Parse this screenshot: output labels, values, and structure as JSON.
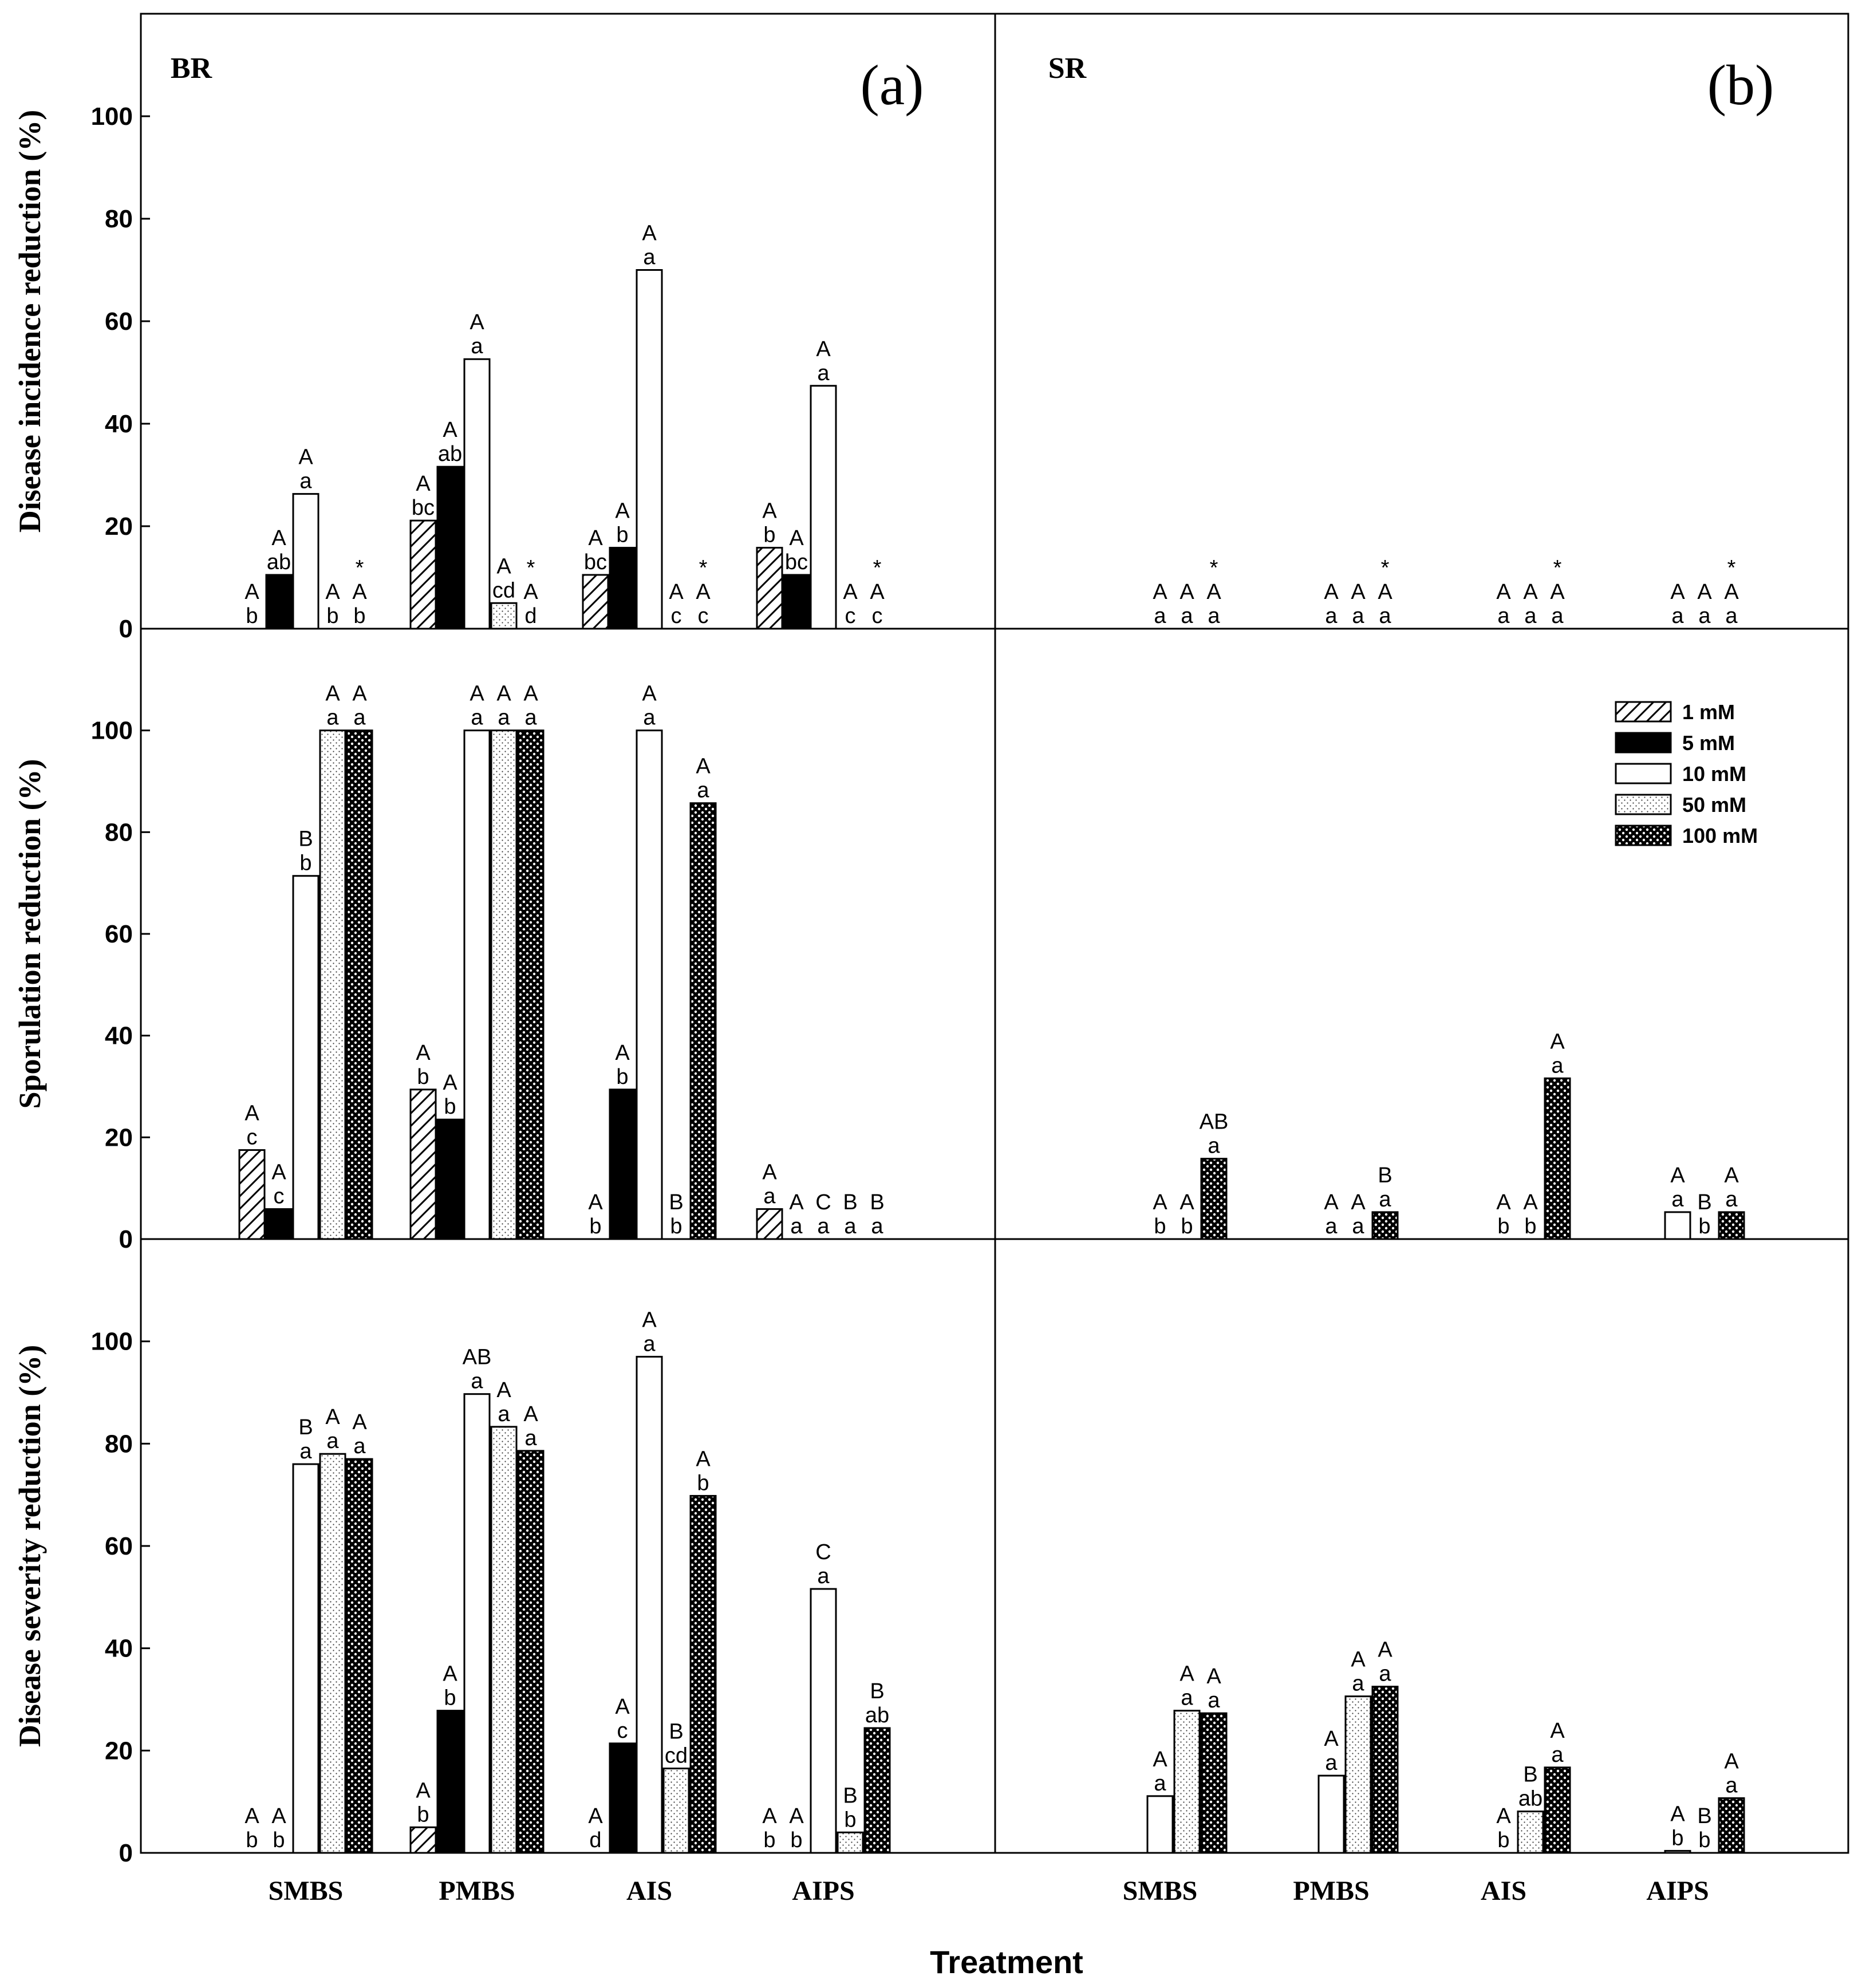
{
  "chart_data": {
    "type": "bar",
    "panel_labels": [
      "(a)",
      "(b)"
    ],
    "cultivar_labels": [
      "BR",
      "SR"
    ],
    "categories": [
      "SMBS",
      "PMBS",
      "AIS",
      "AIPS"
    ],
    "xlabel": "Treatment",
    "ylim": [
      0,
      120
    ],
    "yticks": [
      0,
      20,
      40,
      60,
      80,
      100
    ],
    "legend": {
      "placement": "top-right",
      "entries": [
        "1 mM",
        "5 mM",
        "10 mM",
        "50 mM",
        "100 mM"
      ]
    },
    "series_names": [
      "1 mM",
      "5 mM",
      "10 mM",
      "50 mM",
      "100 mM"
    ],
    "rows": [
      {
        "ylabel": "Disease incidence reduction (%)",
        "panels": [
          {
            "cultivar": "BR",
            "values": [
              [
                0,
                10.5,
                26.3,
                0,
                0
              ],
              [
                21.1,
                31.6,
                52.6,
                5,
                0
              ],
              [
                10.5,
                15.8,
                70,
                0,
                0
              ],
              [
                15.8,
                10.5,
                47.4,
                0,
                0
              ]
            ],
            "labels": [
              [
                [
                  "A",
                  "b"
                ],
                [
                  "A",
                  "ab"
                ],
                [
                  "A",
                  "a"
                ],
                [
                  "A",
                  "b"
                ],
                [
                  "*",
                  "A",
                  "b"
                ]
              ],
              [
                [
                  "A",
                  "bc"
                ],
                [
                  "A",
                  "ab"
                ],
                [
                  "A",
                  "a"
                ],
                [
                  "A",
                  "cd"
                ],
                [
                  "*",
                  "A",
                  "d"
                ]
              ],
              [
                [
                  "A",
                  "bc"
                ],
                [
                  "A",
                  "b"
                ],
                [
                  "A",
                  "a"
                ],
                [
                  "A",
                  "c"
                ],
                [
                  "*",
                  "A",
                  "c"
                ]
              ],
              [
                [
                  "A",
                  "b"
                ],
                [
                  "A",
                  "bc"
                ],
                [
                  "A",
                  "a"
                ],
                [
                  "A",
                  "c"
                ],
                [
                  "*",
                  "A",
                  "c"
                ]
              ]
            ]
          },
          {
            "cultivar": "SR",
            "values": [
              [
                null,
                null,
                0,
                0,
                0
              ],
              [
                null,
                null,
                0,
                0,
                0
              ],
              [
                null,
                null,
                0,
                0,
                0
              ],
              [
                null,
                null,
                0,
                0,
                0
              ]
            ],
            "labels": [
              [
                null,
                null,
                [
                  "A",
                  "a"
                ],
                [
                  "A",
                  "a"
                ],
                [
                  "*",
                  "A",
                  "a"
                ]
              ],
              [
                null,
                null,
                [
                  "A",
                  "a"
                ],
                [
                  "A",
                  "a"
                ],
                [
                  "*",
                  "A",
                  "a"
                ]
              ],
              [
                null,
                null,
                [
                  "A",
                  "a"
                ],
                [
                  "A",
                  "a"
                ],
                [
                  "*",
                  "A",
                  "a"
                ]
              ],
              [
                null,
                null,
                [
                  "A",
                  "a"
                ],
                [
                  "A",
                  "a"
                ],
                [
                  "*",
                  "A",
                  "a"
                ]
              ]
            ]
          }
        ]
      },
      {
        "ylabel": "Sporulation reduction (%)",
        "panels": [
          {
            "cultivar": "BR",
            "values": [
              [
                17.5,
                5.9,
                71.4,
                100,
                100
              ],
              [
                29.4,
                23.5,
                100,
                100,
                100
              ],
              [
                0,
                29.4,
                100,
                0,
                85.7
              ],
              [
                5.9,
                0,
                0,
                0,
                0
              ]
            ],
            "labels": [
              [
                [
                  "A",
                  "c"
                ],
                [
                  "A",
                  "c"
                ],
                [
                  "B",
                  "b"
                ],
                [
                  "A",
                  "a"
                ],
                [
                  "A",
                  "a"
                ]
              ],
              [
                [
                  "A",
                  "b"
                ],
                [
                  "A",
                  "b"
                ],
                [
                  "A",
                  "a"
                ],
                [
                  "A",
                  "a"
                ],
                [
                  "A",
                  "a"
                ]
              ],
              [
                [
                  "A",
                  "b"
                ],
                [
                  "A",
                  "b"
                ],
                [
                  "A",
                  "a"
                ],
                [
                  "B",
                  "b"
                ],
                [
                  "A",
                  "a"
                ]
              ],
              [
                [
                  "A",
                  "a"
                ],
                [
                  "A",
                  "a"
                ],
                [
                  "C",
                  "a"
                ],
                [
                  "B",
                  "a"
                ],
                [
                  "B",
                  "a"
                ]
              ]
            ]
          },
          {
            "cultivar": "SR",
            "values": [
              [
                null,
                null,
                0,
                0,
                15.8
              ],
              [
                null,
                null,
                0,
                0,
                5.3
              ],
              [
                null,
                null,
                0,
                0,
                31.6
              ],
              [
                null,
                null,
                5.3,
                0,
                5.3
              ]
            ],
            "labels": [
              [
                null,
                null,
                [
                  "A",
                  "b"
                ],
                [
                  "A",
                  "b"
                ],
                [
                  "AB",
                  "a"
                ]
              ],
              [
                null,
                null,
                [
                  "A",
                  "a"
                ],
                [
                  "A",
                  "a"
                ],
                [
                  "B",
                  "a"
                ]
              ],
              [
                null,
                null,
                [
                  "A",
                  "b"
                ],
                [
                  "A",
                  "b"
                ],
                [
                  "A",
                  "a"
                ]
              ],
              [
                null,
                null,
                [
                  "A",
                  "a"
                ],
                [
                  "B",
                  "b"
                ],
                [
                  "A",
                  "a"
                ]
              ]
            ]
          }
        ]
      },
      {
        "ylabel": "Disease severity reduction (%)",
        "panels": [
          {
            "cultivar": "BR",
            "values": [
              [
                0,
                0,
                76,
                78,
                77
              ],
              [
                5,
                27.8,
                89.7,
                83.3,
                78.6
              ],
              [
                0,
                21.4,
                97,
                16.5,
                69.8
              ],
              [
                0,
                0,
                51.6,
                4,
                24.4
              ]
            ],
            "labels": [
              [
                [
                  "A",
                  "b"
                ],
                [
                  "A",
                  "b"
                ],
                [
                  "B",
                  "a"
                ],
                [
                  "A",
                  "a"
                ],
                [
                  "A",
                  "a"
                ]
              ],
              [
                [
                  "A",
                  "b"
                ],
                [
                  "A",
                  "b"
                ],
                [
                  "AB",
                  "a"
                ],
                [
                  "A",
                  "a"
                ],
                [
                  "A",
                  "a"
                ]
              ],
              [
                [
                  "A",
                  "d"
                ],
                [
                  "A",
                  "c"
                ],
                [
                  "A",
                  "a"
                ],
                [
                  "B",
                  "cd"
                ],
                [
                  "A",
                  "b"
                ]
              ],
              [
                [
                  "A",
                  "b"
                ],
                [
                  "A",
                  "b"
                ],
                [
                  "C",
                  "a"
                ],
                [
                  "B",
                  "b"
                ],
                [
                  "B",
                  "ab"
                ]
              ]
            ]
          },
          {
            "cultivar": "SR",
            "values": [
              [
                null,
                null,
                11.1,
                27.8,
                27.3
              ],
              [
                null,
                null,
                15.1,
                30.6,
                32.5
              ],
              [
                null,
                null,
                0,
                8.1,
                16.7
              ],
              [
                null,
                null,
                0.4,
                0,
                10.7
              ]
            ],
            "labels": [
              [
                null,
                null,
                [
                  "A",
                  "a"
                ],
                [
                  "A",
                  "a"
                ],
                [
                  "A",
                  "a"
                ]
              ],
              [
                null,
                null,
                [
                  "A",
                  "a"
                ],
                [
                  "A",
                  "a"
                ],
                [
                  "A",
                  "a"
                ]
              ],
              [
                null,
                null,
                [
                  "A",
                  "b"
                ],
                [
                  "B",
                  "ab"
                ],
                [
                  "A",
                  "a"
                ]
              ],
              [
                null,
                null,
                [
                  "A",
                  "b"
                ],
                [
                  "B",
                  "b"
                ],
                [
                  "A",
                  "a"
                ]
              ]
            ]
          }
        ]
      }
    ]
  }
}
